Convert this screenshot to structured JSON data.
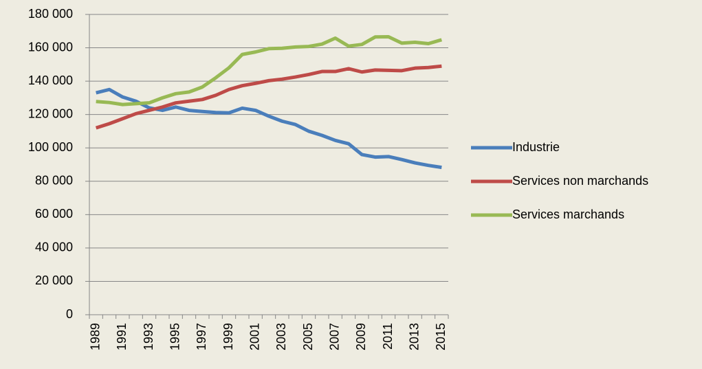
{
  "chart_data": {
    "type": "line",
    "categories": [
      "1989",
      null,
      "1991",
      null,
      "1993",
      null,
      "1995",
      null,
      "1997",
      null,
      "1999",
      null,
      "2001",
      null,
      "2003",
      null,
      "2005",
      null,
      "2007",
      null,
      "2009",
      null,
      "2011",
      null,
      "2013",
      null,
      "2015"
    ],
    "series": [
      {
        "name": "Industrie",
        "color": "#4a7ebb",
        "values": [
          133000,
          135000,
          130500,
          128000,
          124000,
          122500,
          124500,
          122500,
          121800,
          121200,
          121000,
          123800,
          122500,
          119000,
          116000,
          114000,
          110000,
          107500,
          104500,
          102500,
          96000,
          94500,
          94800,
          93000,
          91000,
          89500,
          88300
        ]
      },
      {
        "name": "Services non marchands",
        "color": "#be4b48",
        "values": [
          112000,
          114500,
          117500,
          120500,
          122500,
          124500,
          127000,
          128000,
          129000,
          131500,
          135000,
          137300,
          138700,
          140300,
          141200,
          142500,
          144000,
          145800,
          145800,
          147500,
          145500,
          146700,
          146500,
          146300,
          147800,
          148200,
          149000
        ]
      },
      {
        "name": "Services marchands",
        "color": "#98b954",
        "values": [
          127800,
          127200,
          126000,
          126500,
          127000,
          130000,
          132500,
          133500,
          136500,
          142000,
          148000,
          156000,
          157500,
          159500,
          159700,
          160500,
          160800,
          162200,
          165800,
          161000,
          162000,
          166500,
          166600,
          162800,
          163300,
          162500,
          164800
        ]
      }
    ],
    "ylim": [
      0,
      180000
    ],
    "yticks": [
      0,
      {
        "value": 20000,
        "label": "20 000"
      },
      {
        "value": 40000,
        "label": "40 000"
      },
      {
        "value": 60000,
        "label": "60 000"
      },
      {
        "value": 80000,
        "label": "80 000"
      },
      {
        "value": 100000,
        "label": "100 000"
      },
      {
        "value": 120000,
        "label": "120 000"
      },
      {
        "value": 140000,
        "label": "140 000"
      },
      {
        "value": 160000,
        "label": "160 000"
      },
      {
        "value": 180000,
        "label": "180 000"
      }
    ],
    "grid": true,
    "legend": "right"
  }
}
